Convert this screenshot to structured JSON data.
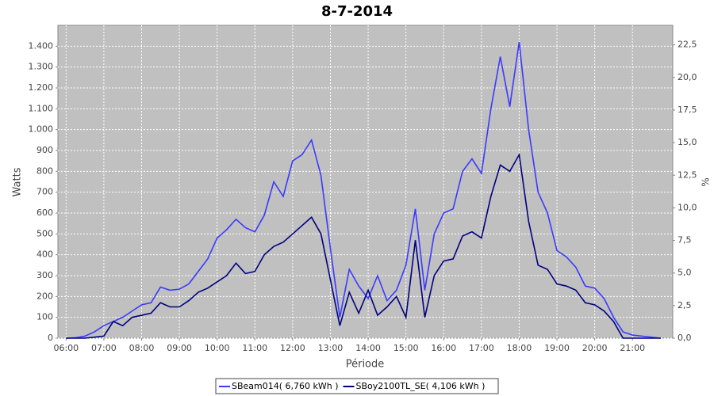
{
  "chart_data": {
    "type": "line",
    "title": "8-7-2014",
    "xlabel": "Période",
    "ylabel": "Watts",
    "y2label": "%",
    "x": [
      "06:00",
      "06:15",
      "06:30",
      "06:45",
      "07:00",
      "07:15",
      "07:30",
      "07:45",
      "08:00",
      "08:15",
      "08:30",
      "08:45",
      "09:00",
      "09:15",
      "09:30",
      "09:45",
      "10:00",
      "10:15",
      "10:30",
      "10:45",
      "11:00",
      "11:15",
      "11:30",
      "11:45",
      "12:00",
      "12:15",
      "12:30",
      "12:45",
      "13:00",
      "13:15",
      "13:30",
      "13:45",
      "14:00",
      "14:15",
      "14:30",
      "14:45",
      "15:00",
      "15:15",
      "15:30",
      "15:45",
      "16:00",
      "16:15",
      "16:30",
      "16:45",
      "17:00",
      "17:15",
      "17:30",
      "17:45",
      "18:00",
      "18:15",
      "18:30",
      "18:45",
      "19:00",
      "19:15",
      "19:30",
      "19:45",
      "20:00",
      "20:15",
      "20:30",
      "20:45",
      "21:00",
      "21:15",
      "21:30",
      "21:45"
    ],
    "series": [
      {
        "name": "SBeam014( 6,760 kWh )",
        "color": "#3a3aff",
        "values": [
          0,
          2,
          10,
          30,
          60,
          80,
          100,
          130,
          160,
          170,
          245,
          230,
          235,
          260,
          320,
          380,
          480,
          520,
          570,
          530,
          510,
          590,
          750,
          680,
          850,
          880,
          950,
          780,
          430,
          100,
          330,
          250,
          190,
          300,
          180,
          230,
          350,
          620,
          230,
          500,
          600,
          620,
          800,
          860,
          790,
          1100,
          1350,
          1110,
          1420,
          1000,
          700,
          600,
          420,
          390,
          340,
          250,
          240,
          190,
          100,
          30,
          15,
          10,
          5,
          0
        ]
      },
      {
        "name": "SBoy2100TL_SE( 4,106 kWh )",
        "color": "#000080",
        "values": [
          0,
          0,
          0,
          5,
          10,
          80,
          60,
          100,
          110,
          120,
          170,
          150,
          150,
          180,
          220,
          240,
          270,
          300,
          360,
          310,
          320,
          400,
          440,
          460,
          500,
          540,
          580,
          500,
          280,
          60,
          220,
          120,
          230,
          110,
          150,
          200,
          100,
          470,
          100,
          300,
          370,
          380,
          490,
          510,
          480,
          680,
          830,
          800,
          880,
          560,
          350,
          330,
          260,
          250,
          230,
          170,
          160,
          130,
          80,
          0,
          0,
          0,
          0,
          0
        ]
      }
    ],
    "xlim": [
      "05:47",
      "22:04"
    ],
    "xticks": [
      "06:00",
      "07:00",
      "08:00",
      "09:00",
      "10:00",
      "11:00",
      "12:00",
      "13:00",
      "14:00",
      "15:00",
      "16:00",
      "17:00",
      "18:00",
      "19:00",
      "20:00",
      "21:00"
    ],
    "ylim": [
      0,
      1500
    ],
    "yticks": [
      0,
      100,
      200,
      300,
      400,
      500,
      600,
      700,
      800,
      900,
      {
        "value": 1000,
        "label": "1.000"
      },
      {
        "value": 1100,
        "label": "1.100"
      },
      {
        "value": 1200,
        "label": "1.200"
      },
      {
        "value": 1300,
        "label": "1.300"
      },
      {
        "value": 1400,
        "label": "1.400"
      }
    ],
    "y2lim": [
      0,
      24
    ],
    "y2ticks": [
      {
        "value": 0,
        "label": "0,0"
      },
      {
        "value": 2.5,
        "label": "2,5"
      },
      {
        "value": 5,
        "label": "5,0"
      },
      {
        "value": 7.5,
        "label": "7,5"
      },
      {
        "value": 10,
        "label": "10,0"
      },
      {
        "value": 12.5,
        "label": "12,5"
      },
      {
        "value": 15,
        "label": "15,0"
      },
      {
        "value": 17.5,
        "label": "17,5"
      },
      {
        "value": 20,
        "label": "20,0"
      },
      {
        "value": 22.5,
        "label": "22,5"
      }
    ],
    "grid": true
  }
}
